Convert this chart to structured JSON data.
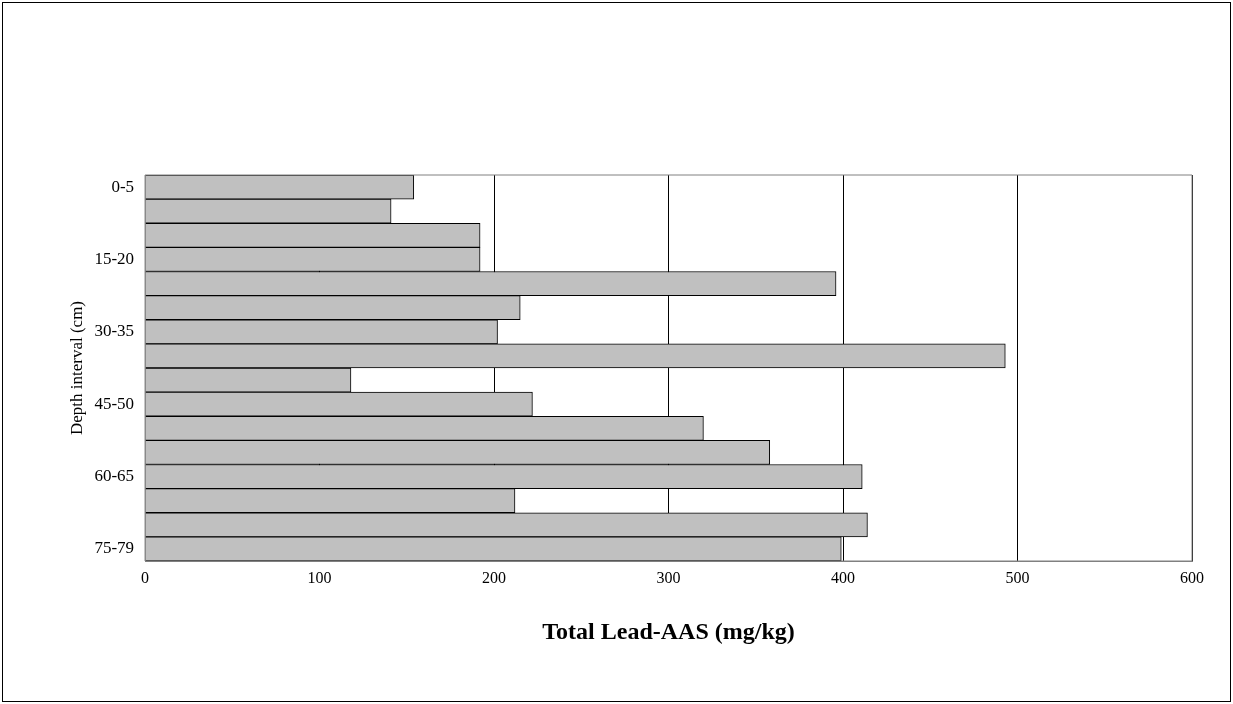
{
  "chart_data": {
    "type": "bar",
    "orientation": "horizontal",
    "xlabel": "Total Lead-AAS (mg/kg)",
    "ylabel": "Depth interval (cm)",
    "categories": [
      "0-5",
      null,
      null,
      "15-20",
      null,
      null,
      "30-35",
      null,
      null,
      "45-50",
      null,
      null,
      "60-65",
      null,
      null,
      "75-79"
    ],
    "values": [
      154,
      141,
      192,
      192,
      396,
      215,
      202,
      493,
      118,
      222,
      320,
      358,
      411,
      212,
      414,
      399
    ],
    "color": "#c0c0c0",
    "xlim": [
      0,
      600
    ],
    "xticks": [
      0,
      100,
      200,
      300,
      400,
      500,
      600
    ],
    "grid": "x"
  }
}
